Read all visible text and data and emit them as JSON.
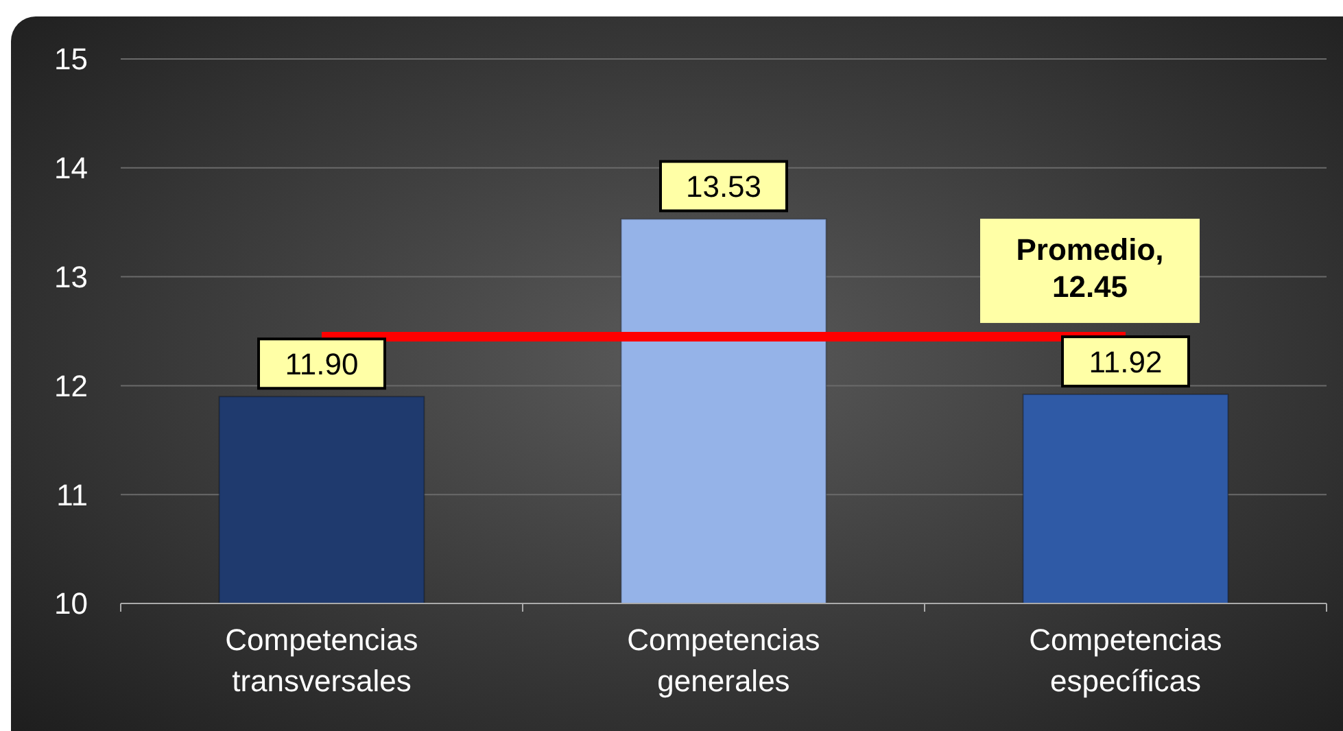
{
  "chart_data": {
    "type": "bar",
    "categories": [
      "Competencias transversales",
      "Competencias generales",
      "Competencias específicas"
    ],
    "values": [
      11.9,
      13.53,
      11.92
    ],
    "colors": [
      "#1f3a6e",
      "#95b3e8",
      "#2f5aa6"
    ],
    "value_labels": [
      "11.90",
      "13.53",
      "11.92"
    ],
    "ylim": [
      10,
      15
    ],
    "yticks": [
      10,
      11,
      12,
      13,
      14,
      15
    ],
    "grid": "y",
    "ref_lines": [
      {
        "axis": "y",
        "value": 12.45,
        "label": "Promedio, 12.45",
        "color": "#ff0000"
      }
    ]
  }
}
